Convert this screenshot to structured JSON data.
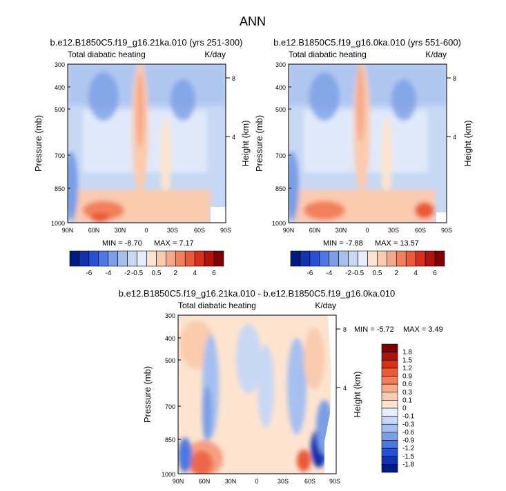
{
  "title": "ANN",
  "colors": {
    "positive": [
      "#fde4d0",
      "#fbcbae",
      "#f8a98a",
      "#f3805c",
      "#ea5a36",
      "#d92e1a",
      "#b2120c",
      "#7f0000"
    ],
    "negative": [
      "#e6eefb",
      "#c7d8f4",
      "#a5bff0",
      "#7a9fe6",
      "#4d78e3",
      "#2650d8",
      "#1232b0",
      "#001a85"
    ],
    "zero": "#f5f5f5"
  },
  "chart_data": [
    {
      "type": "heatmap",
      "id": "panel1",
      "case_title": "b.e12.B1850C5.f19_g16.21ka.010 (yrs 251-300)",
      "left_header": "Total diabatic heating",
      "right_header": "K/day",
      "ylabel": "Pressure (mb)",
      "ylabel_right": "Height (km)",
      "x_ticks": [
        "90N",
        "60N",
        "30N",
        "0",
        "30S",
        "60S",
        "90S"
      ],
      "y_ticks": [
        "300",
        "400",
        "500",
        "700",
        "850",
        "1000"
      ],
      "y_ticks_right": [
        "8",
        "4"
      ],
      "min_text": "MIN =  -8.70",
      "max_text": "MAX =   7.17",
      "colorbar_labels": [
        "-6",
        "-4",
        "-2",
        "-0.5",
        "0.5",
        "2",
        "4",
        "6"
      ]
    },
    {
      "type": "heatmap",
      "id": "panel2",
      "case_title": "b.e12.B1850C5.f19_g16.0ka.010 (yrs 551-600)",
      "left_header": "Total diabatic heating",
      "right_header": "K/day",
      "ylabel": "Pressure (mb)",
      "ylabel_right": "Height (km)",
      "x_ticks": [
        "90N",
        "60N",
        "30N",
        "0",
        "30S",
        "60S",
        "90S"
      ],
      "y_ticks": [
        "300",
        "400",
        "500",
        "700",
        "850",
        "1000"
      ],
      "y_ticks_right": [
        "8",
        "4"
      ],
      "min_text": "MIN =  -7.88",
      "max_text": "MAX =  13.57",
      "colorbar_labels": [
        "-6",
        "-4",
        "-2",
        "-0.5",
        "0.5",
        "2",
        "4",
        "6"
      ]
    },
    {
      "type": "heatmap",
      "id": "panel3",
      "case_title": "b.e12.B1850C5.f19_g16.21ka.010 - b.e12.B1850C5.f19_g16.0ka.010",
      "left_header": "Total diabatic heating",
      "right_header": "K/day",
      "ylabel": "Pressure (mb)",
      "ylabel_right": "Height (km)",
      "x_ticks": [
        "90N",
        "60N",
        "30N",
        "0",
        "30S",
        "60S",
        "90S"
      ],
      "y_ticks": [
        "300",
        "400",
        "500",
        "700",
        "850",
        "1000"
      ],
      "y_ticks_right": [
        "8",
        "4"
      ],
      "min_text": "MIN =  -5.72",
      "max_text": "MAX =   3.49",
      "colorbar_labels": [
        "1.8",
        "1.5",
        "1.2",
        "0.9",
        "0.6",
        "0.3",
        "0.1",
        "0",
        "-0.1",
        "-0.3",
        "-0.6",
        "-0.9",
        "-1.2",
        "-1.5",
        "-1.8"
      ]
    }
  ]
}
